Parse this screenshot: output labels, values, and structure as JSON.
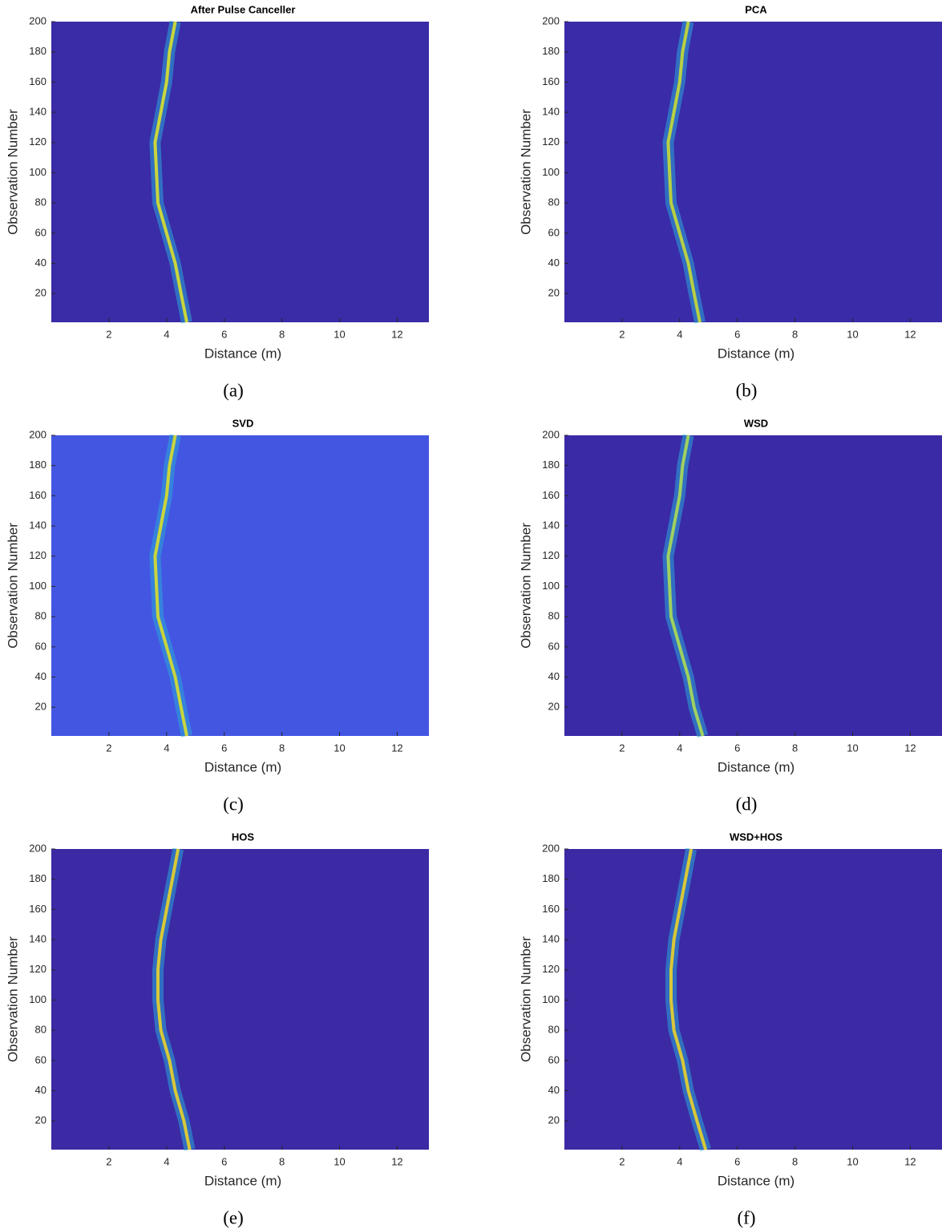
{
  "chart_data": [
    {
      "type": "heatmap",
      "title": "After Pulse Canceller",
      "caption": "(a)",
      "xlabel": "Distance (m)",
      "ylabel": "Observation Number",
      "color": "#3a2ba6",
      "ridge_color": "#c9d53c",
      "x": [
        4.7,
        4.5,
        4.3,
        4.0,
        3.7,
        3.65,
        3.6,
        3.8,
        4.0,
        4.1,
        4.3
      ],
      "values": [
        1,
        20,
        40,
        60,
        80,
        100,
        120,
        140,
        160,
        180,
        200
      ],
      "xlim": [
        0,
        13.1
      ],
      "ylim": [
        1,
        200
      ],
      "xticks": [
        2,
        4,
        6,
        8,
        10,
        12
      ],
      "yticks": [
        20,
        40,
        60,
        80,
        100,
        120,
        140,
        160,
        180,
        200
      ]
    },
    {
      "type": "heatmap",
      "title": "PCA",
      "caption": "(b)",
      "xlabel": "Distance (m)",
      "ylabel": "Observation Number",
      "color": "#3a2ba8",
      "ridge_color": "#b8d043",
      "x": [
        4.7,
        4.5,
        4.3,
        4.0,
        3.7,
        3.65,
        3.6,
        3.8,
        4.0,
        4.1,
        4.3
      ],
      "values": [
        1,
        20,
        40,
        60,
        80,
        100,
        120,
        140,
        160,
        180,
        200
      ],
      "xlim": [
        0,
        13.1
      ],
      "ylim": [
        1,
        200
      ],
      "xticks": [
        2,
        4,
        6,
        8,
        10,
        12
      ],
      "yticks": [
        20,
        40,
        60,
        80,
        100,
        120,
        140,
        160,
        180,
        200
      ]
    },
    {
      "type": "heatmap",
      "title": "SVD",
      "caption": "(c)",
      "xlabel": "Distance (m)",
      "ylabel": "Observation Number",
      "color": "#4356e2",
      "ridge_color": "#c9d53c",
      "x": [
        4.7,
        4.5,
        4.3,
        4.0,
        3.7,
        3.65,
        3.6,
        3.8,
        4.0,
        4.1,
        4.3
      ],
      "values": [
        1,
        20,
        40,
        60,
        80,
        100,
        120,
        140,
        160,
        180,
        200
      ],
      "xlim": [
        0,
        13.1
      ],
      "ylim": [
        1,
        200
      ],
      "xticks": [
        2,
        4,
        6,
        8,
        10,
        12
      ],
      "yticks": [
        20,
        40,
        60,
        80,
        100,
        120,
        140,
        160,
        180,
        200
      ]
    },
    {
      "type": "heatmap",
      "title": "WSD",
      "caption": "(d)",
      "xlabel": "Distance (m)",
      "ylabel": "Observation Number",
      "color": "#3a2aa6",
      "ridge_color": "#9fd160",
      "x": [
        4.8,
        4.5,
        4.3,
        4.0,
        3.7,
        3.65,
        3.6,
        3.8,
        4.0,
        4.1,
        4.3
      ],
      "values": [
        1,
        20,
        40,
        60,
        80,
        100,
        120,
        140,
        160,
        180,
        200
      ],
      "xlim": [
        0,
        13.1
      ],
      "ylim": [
        1,
        200
      ],
      "xticks": [
        2,
        4,
        6,
        8,
        10,
        12
      ],
      "yticks": [
        20,
        40,
        60,
        80,
        100,
        120,
        140,
        160,
        180,
        200
      ]
    },
    {
      "type": "heatmap",
      "title": "HOS",
      "caption": "(e)",
      "xlabel": "Distance (m)",
      "ylabel": "Observation Number",
      "color": "#3b2aa4",
      "ridge_color": "#d8c839",
      "x": [
        4.8,
        4.6,
        4.3,
        4.1,
        3.8,
        3.7,
        3.7,
        3.8,
        4.0,
        4.2,
        4.4
      ],
      "values": [
        1,
        20,
        40,
        60,
        80,
        100,
        120,
        140,
        160,
        180,
        200
      ],
      "xlim": [
        0,
        13.1
      ],
      "ylim": [
        1,
        200
      ],
      "xticks": [
        2,
        4,
        6,
        8,
        10,
        12
      ],
      "yticks": [
        20,
        40,
        60,
        80,
        100,
        120,
        140,
        160,
        180,
        200
      ]
    },
    {
      "type": "heatmap",
      "title": "WSD+HOS",
      "caption": "(f)",
      "xlabel": "Distance (m)",
      "ylabel": "Observation Number",
      "color": "#3b2aa4",
      "ridge_color": "#d8c839",
      "x": [
        4.9,
        4.6,
        4.3,
        4.1,
        3.8,
        3.7,
        3.7,
        3.8,
        4.0,
        4.2,
        4.4
      ],
      "values": [
        1,
        20,
        40,
        60,
        80,
        100,
        120,
        140,
        160,
        180,
        200
      ],
      "xlim": [
        0,
        13.1
      ],
      "ylim": [
        1,
        200
      ],
      "xticks": [
        2,
        4,
        6,
        8,
        10,
        12
      ],
      "yticks": [
        20,
        40,
        60,
        80,
        100,
        120,
        140,
        160,
        180,
        200
      ]
    }
  ]
}
